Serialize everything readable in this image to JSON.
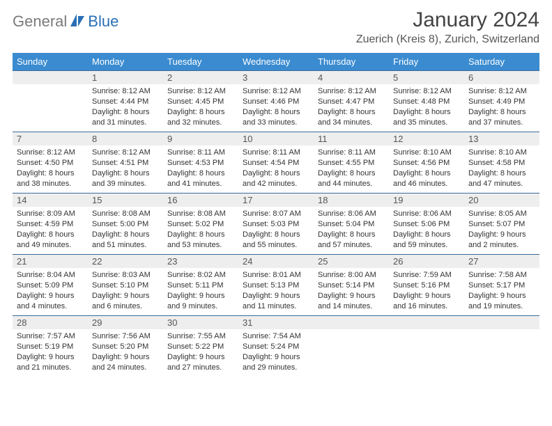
{
  "logo": {
    "part1": "General",
    "part2": "Blue"
  },
  "title": "January 2024",
  "location": "Zuerich (Kreis 8), Zurich, Switzerland",
  "colors": {
    "header_bg": "#3a8bd0",
    "header_text": "#ffffff",
    "daynum_bg": "#eeeeee",
    "row_divider": "#3a6a9a",
    "logo_gray": "#7a7a7a",
    "logo_blue": "#2a6fb5",
    "body_text": "#333333"
  },
  "weekdays": [
    "Sunday",
    "Monday",
    "Tuesday",
    "Wednesday",
    "Thursday",
    "Friday",
    "Saturday"
  ],
  "weeks": [
    [
      null,
      {
        "n": "1",
        "sr": "8:12 AM",
        "ss": "4:44 PM",
        "dl": "8 hours and 31 minutes."
      },
      {
        "n": "2",
        "sr": "8:12 AM",
        "ss": "4:45 PM",
        "dl": "8 hours and 32 minutes."
      },
      {
        "n": "3",
        "sr": "8:12 AM",
        "ss": "4:46 PM",
        "dl": "8 hours and 33 minutes."
      },
      {
        "n": "4",
        "sr": "8:12 AM",
        "ss": "4:47 PM",
        "dl": "8 hours and 34 minutes."
      },
      {
        "n": "5",
        "sr": "8:12 AM",
        "ss": "4:48 PM",
        "dl": "8 hours and 35 minutes."
      },
      {
        "n": "6",
        "sr": "8:12 AM",
        "ss": "4:49 PM",
        "dl": "8 hours and 37 minutes."
      }
    ],
    [
      {
        "n": "7",
        "sr": "8:12 AM",
        "ss": "4:50 PM",
        "dl": "8 hours and 38 minutes."
      },
      {
        "n": "8",
        "sr": "8:12 AM",
        "ss": "4:51 PM",
        "dl": "8 hours and 39 minutes."
      },
      {
        "n": "9",
        "sr": "8:11 AM",
        "ss": "4:53 PM",
        "dl": "8 hours and 41 minutes."
      },
      {
        "n": "10",
        "sr": "8:11 AM",
        "ss": "4:54 PM",
        "dl": "8 hours and 42 minutes."
      },
      {
        "n": "11",
        "sr": "8:11 AM",
        "ss": "4:55 PM",
        "dl": "8 hours and 44 minutes."
      },
      {
        "n": "12",
        "sr": "8:10 AM",
        "ss": "4:56 PM",
        "dl": "8 hours and 46 minutes."
      },
      {
        "n": "13",
        "sr": "8:10 AM",
        "ss": "4:58 PM",
        "dl": "8 hours and 47 minutes."
      }
    ],
    [
      {
        "n": "14",
        "sr": "8:09 AM",
        "ss": "4:59 PM",
        "dl": "8 hours and 49 minutes."
      },
      {
        "n": "15",
        "sr": "8:08 AM",
        "ss": "5:00 PM",
        "dl": "8 hours and 51 minutes."
      },
      {
        "n": "16",
        "sr": "8:08 AM",
        "ss": "5:02 PM",
        "dl": "8 hours and 53 minutes."
      },
      {
        "n": "17",
        "sr": "8:07 AM",
        "ss": "5:03 PM",
        "dl": "8 hours and 55 minutes."
      },
      {
        "n": "18",
        "sr": "8:06 AM",
        "ss": "5:04 PM",
        "dl": "8 hours and 57 minutes."
      },
      {
        "n": "19",
        "sr": "8:06 AM",
        "ss": "5:06 PM",
        "dl": "8 hours and 59 minutes."
      },
      {
        "n": "20",
        "sr": "8:05 AM",
        "ss": "5:07 PM",
        "dl": "9 hours and 2 minutes."
      }
    ],
    [
      {
        "n": "21",
        "sr": "8:04 AM",
        "ss": "5:09 PM",
        "dl": "9 hours and 4 minutes."
      },
      {
        "n": "22",
        "sr": "8:03 AM",
        "ss": "5:10 PM",
        "dl": "9 hours and 6 minutes."
      },
      {
        "n": "23",
        "sr": "8:02 AM",
        "ss": "5:11 PM",
        "dl": "9 hours and 9 minutes."
      },
      {
        "n": "24",
        "sr": "8:01 AM",
        "ss": "5:13 PM",
        "dl": "9 hours and 11 minutes."
      },
      {
        "n": "25",
        "sr": "8:00 AM",
        "ss": "5:14 PM",
        "dl": "9 hours and 14 minutes."
      },
      {
        "n": "26",
        "sr": "7:59 AM",
        "ss": "5:16 PM",
        "dl": "9 hours and 16 minutes."
      },
      {
        "n": "27",
        "sr": "7:58 AM",
        "ss": "5:17 PM",
        "dl": "9 hours and 19 minutes."
      }
    ],
    [
      {
        "n": "28",
        "sr": "7:57 AM",
        "ss": "5:19 PM",
        "dl": "9 hours and 21 minutes."
      },
      {
        "n": "29",
        "sr": "7:56 AM",
        "ss": "5:20 PM",
        "dl": "9 hours and 24 minutes."
      },
      {
        "n": "30",
        "sr": "7:55 AM",
        "ss": "5:22 PM",
        "dl": "9 hours and 27 minutes."
      },
      {
        "n": "31",
        "sr": "7:54 AM",
        "ss": "5:24 PM",
        "dl": "9 hours and 29 minutes."
      },
      null,
      null,
      null
    ]
  ],
  "labels": {
    "sunrise": "Sunrise: ",
    "sunset": "Sunset: ",
    "daylight": "Daylight: "
  }
}
